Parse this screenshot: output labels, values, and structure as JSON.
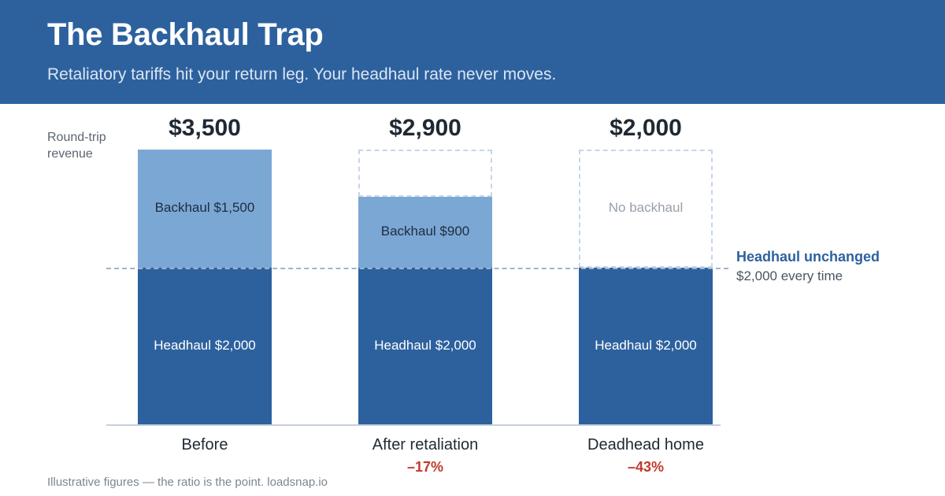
{
  "header": {
    "title": "The Backhaul Trap",
    "subtitle": "Retaliatory tariffs hit your return leg. Your headhaul rate never moves."
  },
  "colors": {
    "header_bg": "#2d619e",
    "headhaul": "#2d619e",
    "backhaul": "#7ba7d5",
    "negative": "#c0392b"
  },
  "chart_data": {
    "type": "bar",
    "stacked": true,
    "ylabel": "Round-trip revenue",
    "categories": [
      "Before",
      "After retaliation",
      "Deadhead home"
    ],
    "series": [
      {
        "name": "Headhaul",
        "values": [
          2000,
          2000,
          2000
        ]
      },
      {
        "name": "Backhaul",
        "values": [
          1500,
          900,
          0
        ]
      }
    ],
    "totals": [
      "$3,500",
      "$2,900",
      "$2,000"
    ],
    "segment_labels": {
      "headhaul": [
        "Headhaul $2,000",
        "Headhaul $2,000",
        "Headhaul $2,000"
      ],
      "backhaul": [
        "Backhaul $1,500",
        "Backhaul $900",
        "No backhaul"
      ]
    },
    "changes": [
      "",
      "–17%",
      "–43%"
    ],
    "ylim": [
      0,
      3500
    ],
    "reference_line": {
      "value": 2000,
      "label": "Headhaul unchanged",
      "sublabel": "$2,000 every time"
    },
    "grid": false,
    "legend": "none"
  },
  "footnote": "Illustrative figures — the ratio is the point. loadsnap.io"
}
